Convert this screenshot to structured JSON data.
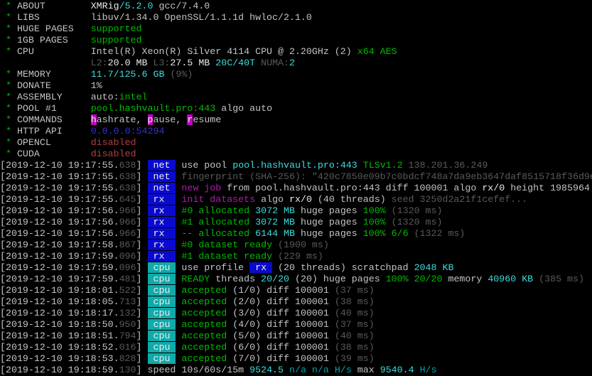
{
  "app": "xmrig-terminal",
  "palette": {
    "w": "#c4c4c4",
    "W": "#ececec",
    "g": "#00bb00",
    "c": "#00a5a5",
    "C": "#3cdcdc",
    "k": "#5a5a5a",
    "r": "#b04040",
    "m": "#b518b5",
    "b": "#3232d0",
    "bgB": "#0a0ace",
    "bgT": "#10aaaa",
    "bgM": "#c400c4",
    "background": "#000000"
  },
  "lines": [
    {
      "n": "header-line-about",
      "s": [
        [
          " * ",
          "g"
        ],
        [
          "ABOUT        ",
          "w"
        ],
        [
          "XMRig",
          "W"
        ],
        [
          "/5.2.0",
          "C"
        ],
        [
          " gcc/7.4.0",
          "w"
        ]
      ]
    },
    {
      "n": "header-line-libs",
      "s": [
        [
          " * ",
          "g"
        ],
        [
          "LIBS         ",
          "w"
        ],
        [
          "libuv/1.34.0 OpenSSL/1.1.1d hwloc/2.1.0",
          "w"
        ]
      ]
    },
    {
      "n": "header-line-hugepages",
      "s": [
        [
          " * ",
          "g"
        ],
        [
          "HUGE PAGES   ",
          "w"
        ],
        [
          "supported",
          "g"
        ]
      ]
    },
    {
      "n": "header-line-1gbpages",
      "s": [
        [
          " * ",
          "g"
        ],
        [
          "1GB PAGES    ",
          "w"
        ],
        [
          "supported",
          "g"
        ]
      ]
    },
    {
      "n": "header-line-cpu",
      "s": [
        [
          " * ",
          "g"
        ],
        [
          "CPU          ",
          "w"
        ],
        [
          "Intel(R) Xeon(R) Silver 4114 CPU @ 2.20GHz (2) ",
          "w"
        ],
        [
          "x64 AES",
          "g"
        ]
      ]
    },
    {
      "n": "header-line-cpu-cache",
      "s": [
        [
          "                ",
          "w"
        ],
        [
          "L2:",
          "k"
        ],
        [
          "20.0 MB",
          "W"
        ],
        [
          " ",
          "w"
        ],
        [
          "L3:",
          "k"
        ],
        [
          "27.5 MB",
          "W"
        ],
        [
          " ",
          "w"
        ],
        [
          "20C/40T",
          "C"
        ],
        [
          " ",
          "w"
        ],
        [
          "NUMA:",
          "k"
        ],
        [
          "2",
          "C"
        ]
      ]
    },
    {
      "n": "header-line-memory",
      "s": [
        [
          " * ",
          "g"
        ],
        [
          "MEMORY       ",
          "w"
        ],
        [
          "11.7/125.6 GB",
          "C"
        ],
        [
          " (9%)",
          "k"
        ]
      ]
    },
    {
      "n": "header-line-donate",
      "s": [
        [
          " * ",
          "g"
        ],
        [
          "DONATE       ",
          "w"
        ],
        [
          "1%",
          "w"
        ]
      ]
    },
    {
      "n": "header-line-assembly",
      "s": [
        [
          " * ",
          "g"
        ],
        [
          "ASSEMBLY     ",
          "w"
        ],
        [
          "auto:",
          "w"
        ],
        [
          "intel",
          "g"
        ]
      ]
    },
    {
      "n": "header-line-pool",
      "s": [
        [
          " * ",
          "g"
        ],
        [
          "POOL #1      ",
          "w"
        ],
        [
          "pool.hashvault.pro:443",
          "g"
        ],
        [
          " algo auto",
          "w"
        ]
      ]
    },
    {
      "n": "header-line-commands",
      "s": [
        [
          " * ",
          "g"
        ],
        [
          "COMMANDS     ",
          "w"
        ],
        [
          "h",
          "W",
          "bgM",
          "hotkey-hashrate"
        ],
        [
          "ashrate, ",
          "w"
        ],
        [
          "p",
          "W",
          "bgM",
          "hotkey-pause"
        ],
        [
          "ause, ",
          "w"
        ],
        [
          "r",
          "W",
          "bgM",
          "hotkey-resume"
        ],
        [
          "esume",
          "w"
        ]
      ]
    },
    {
      "n": "header-line-http-api",
      "s": [
        [
          " * ",
          "g"
        ],
        [
          "HTTP API     ",
          "w"
        ],
        [
          "0.0.0.0:54294",
          "b"
        ]
      ]
    },
    {
      "n": "header-line-opencl",
      "s": [
        [
          " * ",
          "g"
        ],
        [
          "OPENCL       ",
          "w"
        ],
        [
          "disabled",
          "r"
        ]
      ]
    },
    {
      "n": "header-line-cuda",
      "s": [
        [
          " * ",
          "g"
        ],
        [
          "CUDA         ",
          "w"
        ],
        [
          "disabled",
          "r"
        ]
      ]
    },
    {
      "n": "log-line-use-pool",
      "s": [
        [
          "[2019-12-10 19:17:55.",
          "w"
        ],
        [
          "638",
          "k"
        ],
        [
          "] ",
          "w"
        ],
        [
          " net ",
          "W",
          "bgB",
          "net-badge"
        ],
        [
          " ",
          "w"
        ],
        [
          "use pool ",
          "w"
        ],
        [
          "pool.hashvault.pro:443",
          "C"
        ],
        [
          " ",
          "w"
        ],
        [
          "TLSv1.2",
          "g"
        ],
        [
          " 138.201.36.249",
          "k"
        ]
      ]
    },
    {
      "n": "log-line-fingerprint",
      "s": [
        [
          "[2019-12-10 19:17:55.",
          "w"
        ],
        [
          "638",
          "k"
        ],
        [
          "] ",
          "w"
        ],
        [
          " net ",
          "W",
          "bgB",
          "net-badge"
        ],
        [
          " ",
          "w"
        ],
        [
          "fingerprint (SHA-256): \"420c7850e09b7c0bdcf748a7da9eb3647daf8515718f36d9e",
          "k"
        ]
      ]
    },
    {
      "n": "log-line-new-job",
      "s": [
        [
          "[2019-12-10 19:17:55.",
          "w"
        ],
        [
          "638",
          "k"
        ],
        [
          "] ",
          "w"
        ],
        [
          " net ",
          "W",
          "bgB",
          "net-badge"
        ],
        [
          " ",
          "w"
        ],
        [
          "new job",
          "m"
        ],
        [
          " from pool.hashvault.pro:443 diff 100001 algo ",
          "w"
        ],
        [
          "rx/0",
          "W"
        ],
        [
          " height 1985964",
          "w"
        ]
      ]
    },
    {
      "n": "log-line-init-datasets",
      "s": [
        [
          "[2019-12-10 19:17:55.",
          "w"
        ],
        [
          "645",
          "k"
        ],
        [
          "] ",
          "w"
        ],
        [
          " rx  ",
          "W",
          "bgB",
          "rx-badge"
        ],
        [
          " ",
          "w"
        ],
        [
          "init datasets",
          "m"
        ],
        [
          " algo ",
          "w"
        ],
        [
          "rx/0",
          "W"
        ],
        [
          " (40 threads) ",
          "w"
        ],
        [
          "seed 3250d2a21f1cefef...",
          "k"
        ]
      ]
    },
    {
      "n": "log-line-allocated-0",
      "s": [
        [
          "[2019-12-10 19:17:56.",
          "w"
        ],
        [
          "966",
          "k"
        ],
        [
          "] ",
          "w"
        ],
        [
          " rx  ",
          "W",
          "bgB",
          "rx-badge"
        ],
        [
          " ",
          "w"
        ],
        [
          "#0 allocated ",
          "g"
        ],
        [
          "3072 MB",
          "C"
        ],
        [
          " huge pages ",
          "w"
        ],
        [
          "100%",
          "g"
        ],
        [
          " (1320 ms)",
          "k"
        ]
      ]
    },
    {
      "n": "log-line-allocated-1",
      "s": [
        [
          "[2019-12-10 19:17:56.",
          "w"
        ],
        [
          "966",
          "k"
        ],
        [
          "] ",
          "w"
        ],
        [
          " rx  ",
          "W",
          "bgB",
          "rx-badge"
        ],
        [
          " ",
          "w"
        ],
        [
          "#1 allocated ",
          "g"
        ],
        [
          "3072 MB",
          "C"
        ],
        [
          " huge pages ",
          "w"
        ],
        [
          "100%",
          "g"
        ],
        [
          " (1320 ms)",
          "k"
        ]
      ]
    },
    {
      "n": "log-line-allocated-all",
      "s": [
        [
          "[2019-12-10 19:17:56.",
          "w"
        ],
        [
          "966",
          "k"
        ],
        [
          "] ",
          "w"
        ],
        [
          " rx  ",
          "W",
          "bgB",
          "rx-badge"
        ],
        [
          " ",
          "w"
        ],
        [
          "-- allocated ",
          "g"
        ],
        [
          "6144 MB",
          "C"
        ],
        [
          " huge pages ",
          "w"
        ],
        [
          "100% 6/6",
          "g"
        ],
        [
          " (1322 ms)",
          "k"
        ]
      ]
    },
    {
      "n": "log-line-dataset-0",
      "s": [
        [
          "[2019-12-10 19:17:58.",
          "w"
        ],
        [
          "867",
          "k"
        ],
        [
          "] ",
          "w"
        ],
        [
          " rx  ",
          "W",
          "bgB",
          "rx-badge"
        ],
        [
          " ",
          "w"
        ],
        [
          "#0 dataset ready",
          "g"
        ],
        [
          " (1900 ms)",
          "k"
        ]
      ]
    },
    {
      "n": "log-line-dataset-1",
      "s": [
        [
          "[2019-12-10 19:17:59.",
          "w"
        ],
        [
          "096",
          "k"
        ],
        [
          "] ",
          "w"
        ],
        [
          " rx  ",
          "W",
          "bgB",
          "rx-badge"
        ],
        [
          " ",
          "w"
        ],
        [
          "#1 dataset ready",
          "g"
        ],
        [
          " (229 ms)",
          "k"
        ]
      ]
    },
    {
      "n": "log-line-use-profile",
      "s": [
        [
          "[2019-12-10 19:17:59.",
          "w"
        ],
        [
          "096",
          "k"
        ],
        [
          "] ",
          "w"
        ],
        [
          " cpu ",
          "W",
          "bgT",
          "cpu-badge"
        ],
        [
          " ",
          "w"
        ],
        [
          "use profile ",
          "w"
        ],
        [
          " rx ",
          "W",
          "bgB",
          "rx-profile-badge"
        ],
        [
          " (20 threads) scratchpad ",
          "w"
        ],
        [
          "2048 KB",
          "C"
        ]
      ]
    },
    {
      "n": "log-line-ready",
      "s": [
        [
          "[2019-12-10 19:17:59.",
          "w"
        ],
        [
          "481",
          "k"
        ],
        [
          "] ",
          "w"
        ],
        [
          " cpu ",
          "W",
          "bgT",
          "cpu-badge"
        ],
        [
          " ",
          "w"
        ],
        [
          "READY",
          "g"
        ],
        [
          " threads ",
          "w"
        ],
        [
          "20/20",
          "C"
        ],
        [
          " (20) huge pages ",
          "w"
        ],
        [
          "100% 20/20",
          "g"
        ],
        [
          " memory ",
          "w"
        ],
        [
          "40960 KB",
          "C"
        ],
        [
          " (385 ms)",
          "k"
        ]
      ]
    },
    {
      "n": "log-line-accepted-1",
      "s": [
        [
          "[2019-12-10 19:18:01.",
          "w"
        ],
        [
          "522",
          "k"
        ],
        [
          "] ",
          "w"
        ],
        [
          " cpu ",
          "W",
          "bgT",
          "cpu-badge"
        ],
        [
          " ",
          "w"
        ],
        [
          "accepted",
          "g"
        ],
        [
          " (1/0) diff 100001 ",
          "w"
        ],
        [
          "(37 ms)",
          "k"
        ]
      ]
    },
    {
      "n": "log-line-accepted-2",
      "s": [
        [
          "[2019-12-10 19:18:05.",
          "w"
        ],
        [
          "713",
          "k"
        ],
        [
          "] ",
          "w"
        ],
        [
          " cpu ",
          "W",
          "bgT",
          "cpu-badge"
        ],
        [
          " ",
          "w"
        ],
        [
          "accepted",
          "g"
        ],
        [
          " (2/0) diff 100001 ",
          "w"
        ],
        [
          "(38 ms)",
          "k"
        ]
      ]
    },
    {
      "n": "log-line-accepted-3",
      "s": [
        [
          "[2019-12-10 19:18:17.",
          "w"
        ],
        [
          "132",
          "k"
        ],
        [
          "] ",
          "w"
        ],
        [
          " cpu ",
          "W",
          "bgT",
          "cpu-badge"
        ],
        [
          " ",
          "w"
        ],
        [
          "accepted",
          "g"
        ],
        [
          " (3/0) diff 100001 ",
          "w"
        ],
        [
          "(40 ms)",
          "k"
        ]
      ]
    },
    {
      "n": "log-line-accepted-4",
      "s": [
        [
          "[2019-12-10 19:18:50.",
          "w"
        ],
        [
          "950",
          "k"
        ],
        [
          "] ",
          "w"
        ],
        [
          " cpu ",
          "W",
          "bgT",
          "cpu-badge"
        ],
        [
          " ",
          "w"
        ],
        [
          "accepted",
          "g"
        ],
        [
          " (4/0) diff 100001 ",
          "w"
        ],
        [
          "(37 ms)",
          "k"
        ]
      ]
    },
    {
      "n": "log-line-accepted-5",
      "s": [
        [
          "[2019-12-10 19:18:51.",
          "w"
        ],
        [
          "794",
          "k"
        ],
        [
          "] ",
          "w"
        ],
        [
          " cpu ",
          "W",
          "bgT",
          "cpu-badge"
        ],
        [
          " ",
          "w"
        ],
        [
          "accepted",
          "g"
        ],
        [
          " (5/0) diff 100001 ",
          "w"
        ],
        [
          "(40 ms)",
          "k"
        ]
      ]
    },
    {
      "n": "log-line-accepted-6",
      "s": [
        [
          "[2019-12-10 19:18:52.",
          "w"
        ],
        [
          "016",
          "k"
        ],
        [
          "] ",
          "w"
        ],
        [
          " cpu ",
          "W",
          "bgT",
          "cpu-badge"
        ],
        [
          " ",
          "w"
        ],
        [
          "accepted",
          "g"
        ],
        [
          " (6/0) diff 100001 ",
          "w"
        ],
        [
          "(38 ms)",
          "k"
        ]
      ]
    },
    {
      "n": "log-line-accepted-7",
      "s": [
        [
          "[2019-12-10 19:18:53.",
          "w"
        ],
        [
          "828",
          "k"
        ],
        [
          "] ",
          "w"
        ],
        [
          " cpu ",
          "W",
          "bgT",
          "cpu-badge"
        ],
        [
          " ",
          "w"
        ],
        [
          "accepted",
          "g"
        ],
        [
          " (7/0) diff 100001 ",
          "w"
        ],
        [
          "(39 ms)",
          "k"
        ]
      ]
    },
    {
      "n": "log-line-speed",
      "s": [
        [
          "[2019-12-10 19:18:59.",
          "w"
        ],
        [
          "130",
          "k"
        ],
        [
          "] ",
          "w"
        ],
        [
          "speed 10s/60s/15m ",
          "w"
        ],
        [
          "9524.5",
          "C"
        ],
        [
          " ",
          "w"
        ],
        [
          "n/a n/a",
          "c"
        ],
        [
          " ",
          "w"
        ],
        [
          "H/s",
          "c"
        ],
        [
          " max ",
          "w"
        ],
        [
          "9540.4",
          "C"
        ],
        [
          " ",
          "w"
        ],
        [
          "H/s",
          "c"
        ]
      ]
    }
  ]
}
